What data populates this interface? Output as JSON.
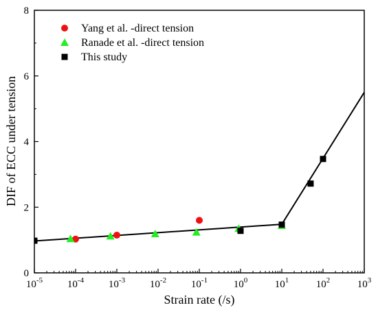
{
  "chart_data": {
    "type": "scatter",
    "xscale": "log",
    "xlabel": "Strain rate (/s)",
    "ylabel": "DIF of ECC under tension",
    "xlim": [
      1e-05,
      1000
    ],
    "ylim": [
      0,
      8
    ],
    "x_ticks": [
      {
        "value": 1e-05,
        "base": "10",
        "exp": "-5"
      },
      {
        "value": 0.0001,
        "base": "10",
        "exp": "-4"
      },
      {
        "value": 0.001,
        "base": "10",
        "exp": "-3"
      },
      {
        "value": 0.01,
        "base": "10",
        "exp": "-2"
      },
      {
        "value": 0.1,
        "base": "10",
        "exp": "-1"
      },
      {
        "value": 1,
        "base": "10",
        "exp": "0"
      },
      {
        "value": 10,
        "base": "10",
        "exp": "1"
      },
      {
        "value": 100,
        "base": "10",
        "exp": "2"
      },
      {
        "value": 1000,
        "base": "10",
        "exp": "3"
      }
    ],
    "y_ticks": [
      "0",
      "2",
      "4",
      "6",
      "8"
    ],
    "grid": false,
    "legend_position": "top-left",
    "series": [
      {
        "name": "Yang et al. -direct tension",
        "marker": "circle",
        "color": "#ee1111",
        "points": [
          [
            0.0001,
            1.03
          ],
          [
            0.001,
            1.15
          ],
          [
            0.1,
            1.6
          ]
        ]
      },
      {
        "name": "Ranade et al. -direct tension",
        "marker": "triangle",
        "color": "#22ee22",
        "points": [
          [
            7.5e-05,
            1.04
          ],
          [
            0.0007,
            1.12
          ],
          [
            0.0085,
            1.19
          ],
          [
            0.085,
            1.24
          ],
          [
            0.9,
            1.35
          ],
          [
            10,
            1.44
          ]
        ]
      },
      {
        "name": "This study",
        "marker": "square",
        "color": "#000000",
        "points": [
          [
            1e-05,
            0.98
          ],
          [
            1,
            1.28
          ],
          [
            10,
            1.47
          ],
          [
            50,
            2.72
          ],
          [
            100,
            3.47
          ]
        ]
      }
    ],
    "fit_line": {
      "color": "#000000",
      "points": [
        [
          1e-05,
          0.97
        ],
        [
          10,
          1.48
        ],
        [
          1000,
          5.5
        ]
      ]
    }
  }
}
